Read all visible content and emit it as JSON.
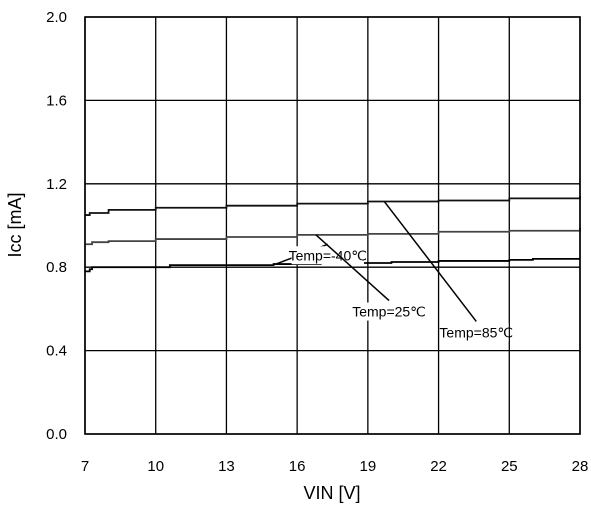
{
  "chart_data": {
    "type": "line",
    "title": "",
    "xlabel": "VIN [V]",
    "ylabel": "Icc [mA]",
    "xlim": [
      7,
      28
    ],
    "ylim": [
      0.0,
      2.0
    ],
    "x_ticks": [
      "7",
      "10",
      "13",
      "16",
      "19",
      "22",
      "25",
      "28"
    ],
    "y_ticks": [
      "0.0",
      "0.4",
      "0.8",
      "1.2",
      "1.6",
      "2.0"
    ],
    "grid": true,
    "series": [
      {
        "name": "Temp=-40℃",
        "x": [
          7.0,
          7.2,
          7.3,
          9.0,
          10.6,
          12.0,
          15.0,
          17.0,
          19.0,
          20.0,
          22.0,
          25.0,
          26.0,
          28.0
        ],
        "y": [
          0.78,
          0.79,
          0.8,
          0.8,
          0.81,
          0.81,
          0.815,
          0.82,
          0.82,
          0.825,
          0.83,
          0.835,
          0.84,
          0.84
        ]
      },
      {
        "name": "Temp=25℃",
        "x": [
          7.0,
          7.3,
          8.0,
          10.0,
          13.0,
          16.0,
          19.0,
          22.0,
          25.0,
          28.0
        ],
        "y": [
          0.91,
          0.92,
          0.925,
          0.935,
          0.945,
          0.955,
          0.96,
          0.97,
          0.975,
          0.99
        ]
      },
      {
        "name": "Temp=85℃",
        "x": [
          7.0,
          7.2,
          8.0,
          10.0,
          13.0,
          16.0,
          19.0,
          22.0,
          25.0,
          28.0
        ],
        "y": [
          1.05,
          1.06,
          1.075,
          1.085,
          1.095,
          1.105,
          1.115,
          1.12,
          1.13,
          1.14
        ]
      }
    ],
    "annotations": [
      {
        "text": "Temp=-40℃",
        "series": 0,
        "point": [
          15.1,
          0.815
        ],
        "text_anchor": [
          17.3,
          0.91
        ]
      },
      {
        "text": "Temp=25℃",
        "series": 1,
        "point": [
          16.8,
          0.955
        ],
        "text_anchor": [
          19.9,
          0.64
        ]
      },
      {
        "text": "Temp=85℃",
        "series": 2,
        "point": [
          19.7,
          1.115
        ],
        "text_anchor": [
          23.6,
          0.54
        ]
      }
    ]
  }
}
